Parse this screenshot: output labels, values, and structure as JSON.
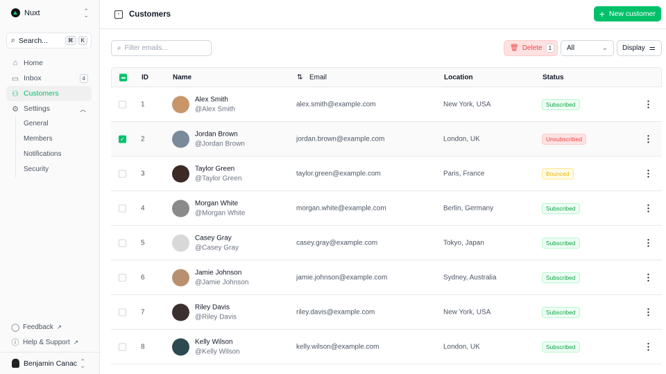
{
  "sidebar": {
    "team": "Nuxt",
    "search_label": "Search...",
    "shortcut": [
      "⌘",
      "K"
    ],
    "nav": [
      {
        "label": "Home",
        "icon": "home-icon"
      },
      {
        "label": "Inbox",
        "icon": "inbox-icon",
        "badge": "4"
      },
      {
        "label": "Customers",
        "icon": "users-icon",
        "active": true
      },
      {
        "label": "Settings",
        "icon": "gear-icon"
      }
    ],
    "settings_sub": [
      "General",
      "Members",
      "Notifications",
      "Security"
    ],
    "footer": [
      {
        "label": "Feedback",
        "icon": "chat-bubble-icon"
      },
      {
        "label": "Help & Support",
        "icon": "info-icon"
      }
    ],
    "user": "Benjamin Canac"
  },
  "header": {
    "title": "Customers",
    "new_button": "New customer"
  },
  "toolbar": {
    "filter_placeholder": "Filter emails...",
    "delete_label": "Delete",
    "delete_count": "1",
    "status_filter": "All",
    "display_label": "Display"
  },
  "table": {
    "columns": [
      "ID",
      "Name",
      "Email",
      "Location",
      "Status"
    ],
    "rows": [
      {
        "id": "1",
        "name": "Alex Smith",
        "handle": "@Alex Smith",
        "email": "alex.smith@example.com",
        "location": "New York, USA",
        "status": "Subscribed",
        "checked": false
      },
      {
        "id": "2",
        "name": "Jordan Brown",
        "handle": "@Jordan Brown",
        "email": "jordan.brown@example.com",
        "location": "London, UK",
        "status": "Unsubscribed",
        "checked": true
      },
      {
        "id": "3",
        "name": "Taylor Green",
        "handle": "@Taylor Green",
        "email": "taylor.green@example.com",
        "location": "Paris, France",
        "status": "Bounced",
        "checked": false
      },
      {
        "id": "4",
        "name": "Morgan White",
        "handle": "@Morgan White",
        "email": "morgan.white@example.com",
        "location": "Berlin, Germany",
        "status": "Subscribed",
        "checked": false
      },
      {
        "id": "5",
        "name": "Casey Gray",
        "handle": "@Casey Gray",
        "email": "casey.gray@example.com",
        "location": "Tokyo, Japan",
        "status": "Subscribed",
        "checked": false
      },
      {
        "id": "6",
        "name": "Jamie Johnson",
        "handle": "@Jamie Johnson",
        "email": "jamie.johnson@example.com",
        "location": "Sydney, Australia",
        "status": "Subscribed",
        "checked": false
      },
      {
        "id": "7",
        "name": "Riley Davis",
        "handle": "@Riley Davis",
        "email": "riley.davis@example.com",
        "location": "New York, USA",
        "status": "Subscribed",
        "checked": false
      },
      {
        "id": "8",
        "name": "Kelly Wilson",
        "handle": "@Kelly Wilson",
        "email": "kelly.wilson@example.com",
        "location": "London, UK",
        "status": "Subscribed",
        "checked": false
      }
    ]
  },
  "colors": {
    "accent": "#00c16a",
    "subscribed": "#16a34a",
    "unsubscribed": "#ef4444",
    "bounced": "#eab308"
  }
}
